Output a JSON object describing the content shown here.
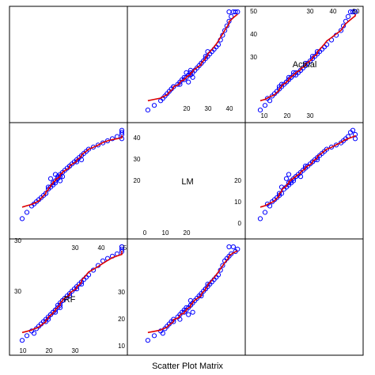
{
  "chart_data": {
    "type": "scatter",
    "variables": [
      "Actual",
      "LM",
      "RF"
    ],
    "caption": "Scatter Plot Matrix",
    "diagonal_ticks": {
      "Actual": {
        "top": [
          "30",
          "40",
          "50"
        ],
        "left": [
          "30",
          "40",
          "50"
        ],
        "bottom": [
          "10",
          "20",
          "30"
        ]
      },
      "LM": {
        "right": [
          "20",
          "30",
          "40"
        ],
        "bottom": [
          "0",
          "10",
          "20"
        ]
      },
      "RF": {
        "left": [
          "30",
          "30"
        ],
        "top": [
          "30",
          "40",
          "5"
        ],
        "bottom": [
          "10",
          "20",
          "30"
        ]
      }
    },
    "side_ticks": {
      "panel_1_2_bottom": [
        "20",
        "30",
        "40"
      ],
      "panel_2_3_left": [
        "0",
        "10",
        "20"
      ],
      "panel_3_2_left": [
        "10",
        "20",
        "30"
      ]
    },
    "ranges": {
      "Actual": [
        5,
        50
      ],
      "LM": [
        -5,
        45
      ],
      "RF": [
        5,
        50
      ]
    },
    "points": {
      "Actual": [
        8,
        10,
        12,
        14,
        15,
        16,
        17,
        18,
        19,
        20,
        21,
        21,
        22,
        22,
        23,
        23,
        24,
        24,
        25,
        26,
        27,
        28,
        29,
        30,
        31,
        32,
        33,
        34,
        35,
        36,
        38,
        40,
        42,
        44,
        46,
        48,
        50,
        50,
        50,
        50,
        13,
        18,
        20,
        24,
        28,
        33,
        19,
        22,
        25,
        31
      ],
      "LM": [
        2,
        5,
        8,
        10,
        11,
        12,
        13,
        14,
        16,
        17,
        18,
        19,
        19,
        20,
        21,
        22,
        22,
        23,
        24,
        25,
        26,
        27,
        28,
        29,
        30,
        31,
        32,
        33,
        34,
        35,
        36,
        37,
        38,
        39,
        40,
        41,
        43,
        44,
        42,
        40,
        9,
        14,
        21,
        20,
        27,
        30,
        17,
        23,
        22,
        29
      ],
      "RF": [
        9,
        11,
        13,
        14,
        15,
        16,
        17,
        18,
        19,
        20,
        21,
        21,
        22,
        22,
        23,
        24,
        24,
        25,
        26,
        27,
        28,
        29,
        30,
        31,
        32,
        33,
        34,
        35,
        36,
        37,
        39,
        41,
        43,
        44,
        45,
        46,
        47,
        48,
        49,
        49,
        12,
        17,
        20,
        23,
        28,
        33,
        18,
        21,
        26,
        31
      ]
    },
    "point_color": "#0000ff",
    "smoother_color": "#dd0000"
  }
}
